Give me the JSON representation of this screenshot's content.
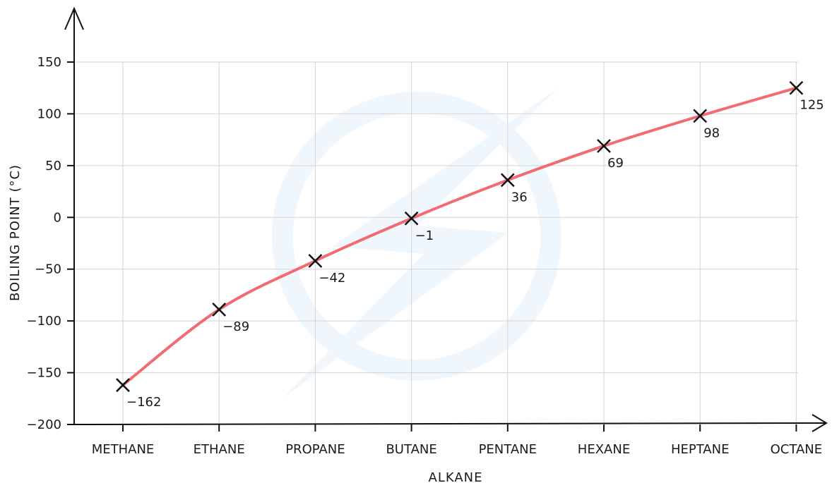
{
  "chart_data": {
    "type": "line",
    "categories": [
      "METHANE",
      "ETHANE",
      "PROPANE",
      "BUTANE",
      "PENTANE",
      "HEXANE",
      "HEPTANE",
      "OCTANE"
    ],
    "values": [
      -162,
      -89,
      -42,
      -1,
      36,
      69,
      98,
      125
    ],
    "data_labels": [
      "−162",
      "−89",
      "−42",
      "−1",
      "36",
      "69",
      "98",
      "125"
    ],
    "xlabel": "ALKANE",
    "ylabel": "BOILING  POINT  (°C)",
    "ylim": [
      -200,
      150
    ],
    "yticks": [
      150,
      100,
      50,
      0,
      -50,
      -100,
      -150,
      -200
    ],
    "ytick_labels": [
      "150",
      "100",
      "50",
      "0",
      "−50",
      "−100",
      "−150",
      "−200"
    ],
    "grid": true,
    "line_color": "#f26b73",
    "marker": "cross"
  }
}
